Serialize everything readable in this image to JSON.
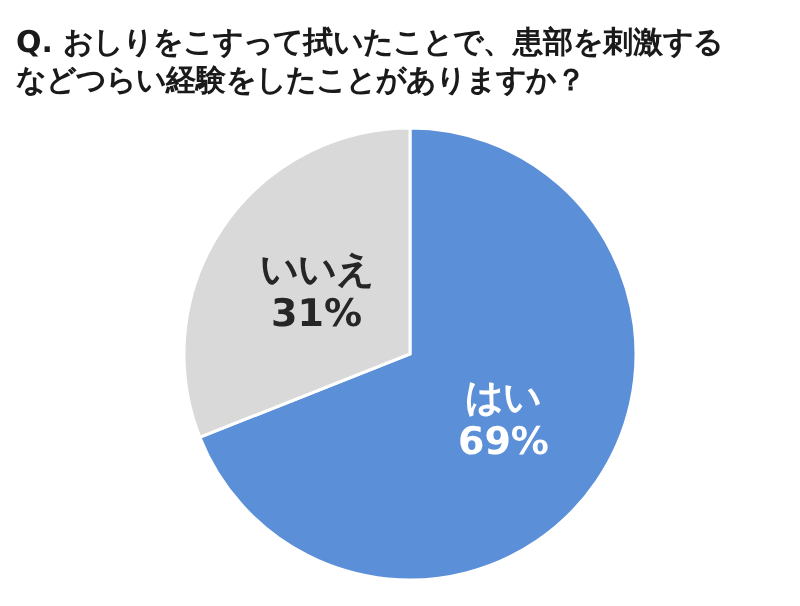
{
  "chart_data": {
    "type": "pie",
    "title": "Q. おしりをこすって拭いたことで、患部を刺激するなどつらい経験をしたことがありますか？",
    "categories": [
      "はい",
      "いいえ"
    ],
    "values": [
      69,
      31
    ],
    "colors": [
      "#5b8fd7",
      "#d9d9d9"
    ],
    "value_labels": [
      "69%",
      "31%"
    ]
  }
}
